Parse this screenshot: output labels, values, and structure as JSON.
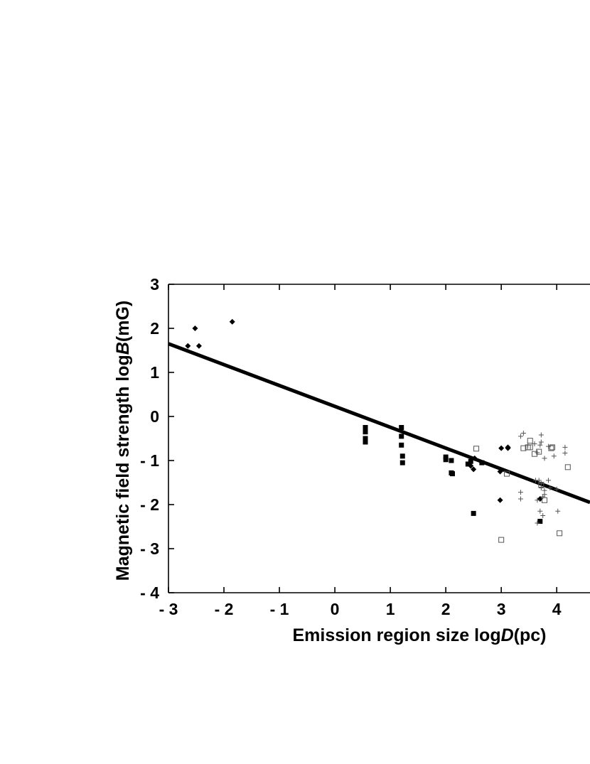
{
  "chart_data": {
    "type": "scatter",
    "xlabel": {
      "prefix": "Emission region size  log",
      "var": "D",
      "unit": "(pc)"
    },
    "ylabel": {
      "prefix": "Magnetic field strength  log",
      "var": "B",
      "unit": "(mG)"
    },
    "xlim": [
      -3,
      4.6
    ],
    "ylim": [
      -4,
      3
    ],
    "xticks": [
      {
        "value": -3,
        "label": "- 3"
      },
      {
        "value": -2,
        "label": "- 2"
      },
      {
        "value": -1,
        "label": "- 1"
      },
      {
        "value": 0,
        "label": "0"
      },
      {
        "value": 1,
        "label": "1"
      },
      {
        "value": 2,
        "label": "2"
      },
      {
        "value": 3,
        "label": "3"
      },
      {
        "value": 4,
        "label": "4"
      }
    ],
    "yticks": [
      {
        "value": 3,
        "label": "3"
      },
      {
        "value": 2,
        "label": "2"
      },
      {
        "value": 1,
        "label": "1"
      },
      {
        "value": 0,
        "label": "0"
      },
      {
        "value": -1,
        "label": "- 1"
      },
      {
        "value": -2,
        "label": "- 2"
      },
      {
        "value": -3,
        "label": "- 3"
      },
      {
        "value": -4,
        "label": "- 4"
      }
    ],
    "grid": false,
    "fit_line": {
      "x": [
        -3,
        4.6
      ],
      "y": [
        1.65,
        -1.95
      ]
    },
    "series": [
      {
        "marker": "diamond-filled",
        "points": [
          [
            -2.65,
            1.6
          ],
          [
            -2.52,
            2.0
          ],
          [
            -2.45,
            1.6
          ],
          [
            -1.85,
            2.15
          ],
          [
            2.45,
            -1.12
          ],
          [
            2.5,
            -1.2
          ],
          [
            2.52,
            -0.95
          ],
          [
            2.98,
            -1.25
          ],
          [
            3.0,
            -0.72
          ],
          [
            3.12,
            -0.72
          ],
          [
            3.12,
            -0.7
          ],
          [
            2.98,
            -1.9
          ],
          [
            3.7,
            -1.87
          ]
        ]
      },
      {
        "marker": "square-filled",
        "points": [
          [
            0.55,
            -0.25
          ],
          [
            0.55,
            -0.35
          ],
          [
            0.55,
            -0.5
          ],
          [
            0.55,
            -0.58
          ],
          [
            1.2,
            -0.25
          ],
          [
            1.2,
            -0.45
          ],
          [
            1.2,
            -0.65
          ],
          [
            1.22,
            -0.9
          ],
          [
            1.22,
            -1.05
          ],
          [
            2.0,
            -0.92
          ],
          [
            2.0,
            -0.98
          ],
          [
            2.1,
            -1.0
          ],
          [
            2.1,
            -1.28
          ],
          [
            2.12,
            -1.3
          ],
          [
            2.4,
            -1.08
          ],
          [
            2.45,
            -1.02
          ],
          [
            2.5,
            -2.2
          ],
          [
            2.65,
            -1.05
          ],
          [
            3.7,
            -2.38
          ]
        ]
      },
      {
        "marker": "square-open",
        "points": [
          [
            2.55,
            -0.73
          ],
          [
            3.1,
            -1.3
          ],
          [
            3.0,
            -2.8
          ],
          [
            3.4,
            -0.72
          ],
          [
            3.48,
            -0.7
          ],
          [
            3.52,
            -0.55
          ],
          [
            3.52,
            -0.7
          ],
          [
            3.6,
            -0.85
          ],
          [
            3.68,
            -0.8
          ],
          [
            3.72,
            -1.55
          ],
          [
            3.9,
            -0.72
          ],
          [
            3.92,
            -0.7
          ],
          [
            4.05,
            -2.65
          ],
          [
            4.2,
            -1.15
          ],
          [
            3.78,
            -1.9
          ]
        ]
      },
      {
        "marker": "plus",
        "points": [
          [
            3.35,
            -0.45
          ],
          [
            3.4,
            -0.38
          ],
          [
            3.48,
            -0.65
          ],
          [
            3.6,
            -0.62
          ],
          [
            3.72,
            -0.42
          ],
          [
            3.72,
            -0.58
          ],
          [
            3.7,
            -0.65
          ],
          [
            3.65,
            -0.82
          ],
          [
            3.85,
            -0.68
          ],
          [
            3.78,
            -0.95
          ],
          [
            3.95,
            -0.9
          ],
          [
            4.15,
            -0.7
          ],
          [
            4.15,
            -0.83
          ],
          [
            3.35,
            -1.72
          ],
          [
            3.35,
            -1.87
          ],
          [
            3.62,
            -1.45
          ],
          [
            3.65,
            -1.9
          ],
          [
            3.68,
            -1.45
          ],
          [
            3.72,
            -1.52
          ],
          [
            3.72,
            -1.62
          ],
          [
            3.78,
            -1.68
          ],
          [
            3.78,
            -1.77
          ],
          [
            3.85,
            -1.45
          ],
          [
            3.75,
            -1.82
          ],
          [
            3.7,
            -2.15
          ],
          [
            3.75,
            -2.25
          ],
          [
            3.65,
            -2.42
          ],
          [
            4.0,
            -1.65
          ],
          [
            4.02,
            -2.15
          ],
          [
            3.88,
            -1.62
          ]
        ]
      }
    ]
  }
}
